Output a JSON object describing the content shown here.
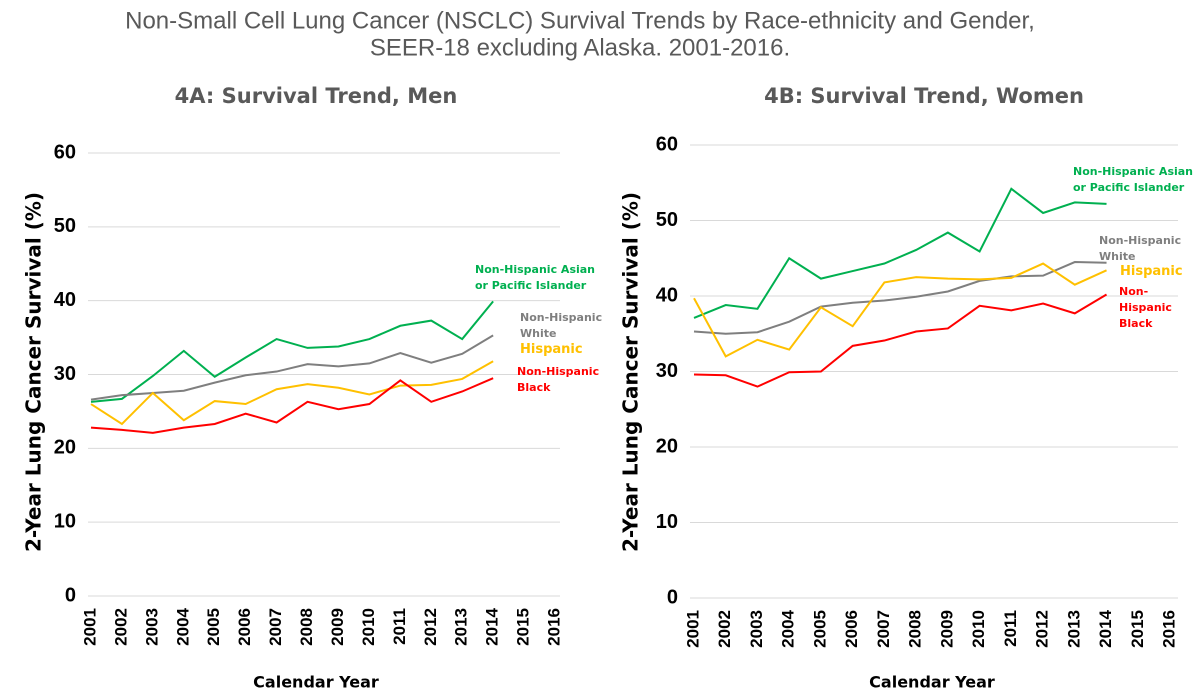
{
  "title": [
    "Non-Small Cell Lung Cancer (NSCLC) Survival Trends by Race-ethnicity and Gender,",
    "SEER-18 excluding Alaska. 2001-2016."
  ],
  "chart_data": [
    {
      "type": "line",
      "title": "4A: Survival Trend, Men",
      "x_label": "Calendar Year",
      "y_label": "2-Year Lung Cancer Survival (%)",
      "categories": [
        "2001",
        "2002",
        "2003",
        "2004",
        "2005",
        "2006",
        "2007",
        "2008",
        "2009",
        "2010",
        "2011",
        "2012",
        "2013",
        "2014",
        "2015",
        "2016"
      ],
      "ylim": [
        0,
        60
      ],
      "yticks": [
        0,
        10,
        20,
        30,
        40,
        50,
        60
      ],
      "grid": true,
      "series": [
        {
          "name": "Non-Hispanic Asian\nor Pacific Islander",
          "color": "#00b050",
          "values": [
            26.3,
            26.7,
            29.8,
            33.2,
            29.7,
            32.3,
            34.8,
            33.6,
            33.8,
            34.8,
            36.6,
            37.3,
            34.8,
            39.9,
            null,
            null
          ]
        },
        {
          "name": "Non-Hispanic\nWhite",
          "color": "#7f7f7f",
          "values": [
            26.6,
            27.2,
            27.5,
            27.8,
            28.9,
            29.9,
            30.4,
            31.4,
            31.1,
            31.5,
            32.9,
            31.6,
            32.8,
            35.3,
            null,
            null
          ]
        },
        {
          "name": "Hispanic",
          "color": "#ffc000",
          "values": [
            26.0,
            23.3,
            27.5,
            23.8,
            26.4,
            26.0,
            28.0,
            28.7,
            28.2,
            27.3,
            28.5,
            28.6,
            29.4,
            31.8,
            null,
            null
          ]
        },
        {
          "name": "Non-Hispanic\nBlack",
          "color": "#ff0000",
          "values": [
            22.8,
            22.5,
            22.1,
            22.8,
            23.3,
            24.7,
            23.5,
            26.3,
            25.3,
            26.0,
            29.2,
            26.3,
            27.7,
            29.5,
            null,
            null
          ]
        }
      ]
    },
    {
      "type": "line",
      "title": "4B: Survival Trend, Women",
      "x_label": "Calendar Year",
      "y_label": "2-Year Lung Cancer Survival (%)",
      "categories": [
        "2001",
        "2002",
        "2003",
        "2004",
        "2005",
        "2006",
        "2007",
        "2008",
        "2009",
        "2010",
        "2011",
        "2012",
        "2013",
        "2014",
        "2015",
        "2016"
      ],
      "ylim": [
        0,
        60
      ],
      "yticks": [
        0,
        10,
        20,
        30,
        40,
        50,
        60
      ],
      "grid": true,
      "series": [
        {
          "name": "Non-Hispanic Asian\nor Pacific Islander",
          "color": "#00b050",
          "values": [
            37.1,
            38.8,
            38.3,
            45.0,
            42.3,
            43.3,
            44.3,
            46.1,
            48.4,
            45.9,
            54.2,
            51.0,
            52.4,
            52.2,
            null,
            null
          ]
        },
        {
          "name": "Non-Hispanic\nWhite",
          "color": "#7f7f7f",
          "values": [
            35.3,
            35.0,
            35.2,
            36.6,
            38.6,
            39.1,
            39.4,
            39.9,
            40.6,
            42.0,
            42.6,
            42.7,
            44.5,
            44.4,
            null,
            null
          ]
        },
        {
          "name": "Hispanic",
          "color": "#ffc000",
          "values": [
            39.7,
            32.0,
            34.2,
            32.9,
            38.5,
            36.0,
            41.8,
            42.5,
            42.3,
            42.2,
            42.4,
            44.3,
            41.5,
            43.4,
            null,
            null
          ]
        },
        {
          "name": "Non-Hispanic\nBlack",
          "color": "#ff0000",
          "values": [
            29.6,
            29.5,
            28.0,
            29.9,
            30.0,
            33.4,
            34.1,
            35.3,
            35.7,
            38.7,
            38.1,
            39.0,
            37.7,
            40.2,
            null,
            null
          ]
        }
      ]
    }
  ]
}
